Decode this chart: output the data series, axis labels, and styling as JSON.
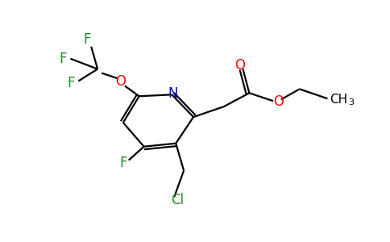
{
  "bg_color": "#ffffff",
  "atom_colors": {
    "C": "#000000",
    "N": "#0000cd",
    "O": "#ff0000",
    "F": "#228B22",
    "Cl": "#228B22"
  },
  "figsize": [
    4.84,
    3.0
  ],
  "dpi": 100,
  "lw": 1.6,
  "fontsize": 11
}
